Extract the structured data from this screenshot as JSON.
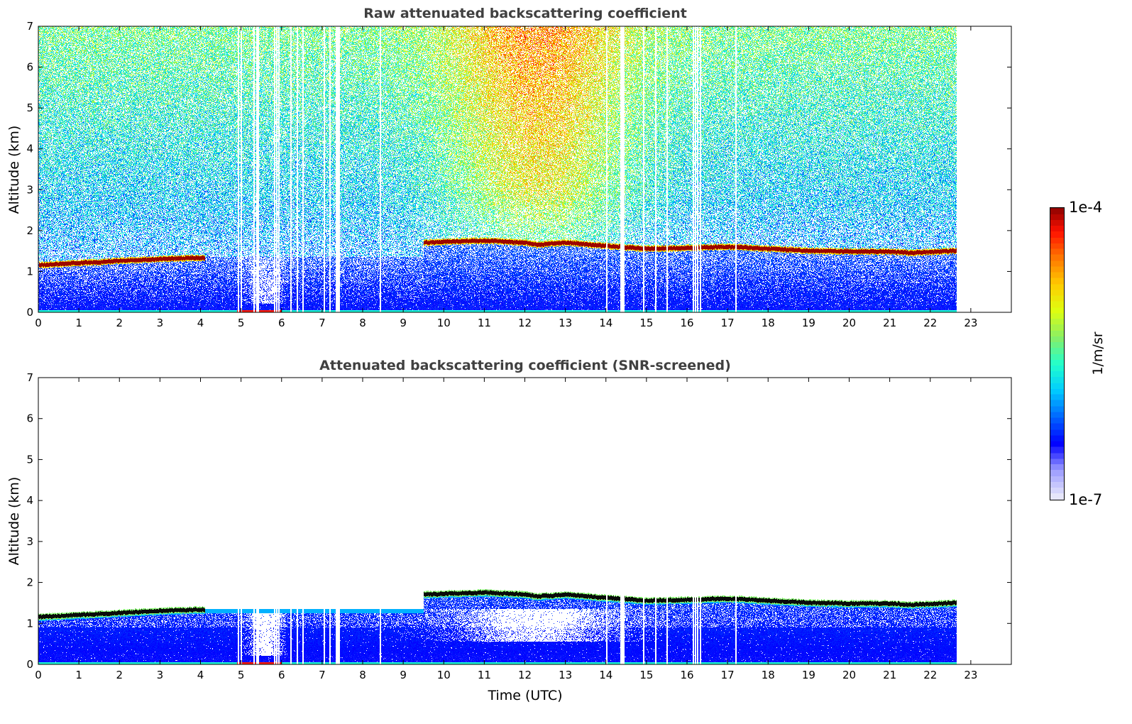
{
  "chart_data": [
    {
      "type": "heatmap",
      "title": "Raw attenuated backscattering coefficient",
      "xlabel": "",
      "ylabel": "Altitude (km)",
      "xlim": [
        0,
        24
      ],
      "ylim": [
        0,
        7
      ],
      "xticks": [
        "0",
        "1",
        "2",
        "3",
        "4",
        "5",
        "6",
        "7",
        "8",
        "9",
        "10",
        "11",
        "12",
        "13",
        "14",
        "15",
        "16",
        "17",
        "18",
        "19",
        "20",
        "21",
        "22",
        "23"
      ],
      "yticks": [
        "0",
        "1",
        "2",
        "3",
        "4",
        "5",
        "6",
        "7"
      ],
      "screened": false,
      "data_end_hour": 22.65,
      "cloud_layer_km": {
        "hours": [
          0,
          1,
          2,
          3,
          4,
          4.1,
          9.5,
          10,
          11,
          12,
          12.3,
          13,
          14,
          15,
          16,
          17,
          18,
          19,
          20,
          21,
          21.5,
          22,
          22.65
        ],
        "altitude": [
          1.15,
          1.2,
          1.25,
          1.3,
          1.33,
          1.33,
          1.7,
          1.72,
          1.75,
          1.7,
          1.65,
          1.7,
          1.62,
          1.55,
          1.57,
          1.6,
          1.55,
          1.5,
          1.48,
          1.48,
          1.45,
          1.47,
          1.5
        ]
      },
      "cloud_gap_hours": [
        4.1,
        9.5
      ],
      "missing_profiles_hours": [
        4.92,
        5.0,
        5.32,
        5.38,
        5.42,
        5.82,
        5.88,
        5.93,
        6.22,
        6.38,
        6.52,
        7.05,
        7.18,
        7.34,
        7.38,
        7.42,
        8.43,
        14.02,
        14.36,
        14.4,
        14.44,
        14.92,
        15.22,
        15.5,
        16.15,
        16.2,
        16.26,
        16.32,
        17.2
      ]
    },
    {
      "type": "heatmap",
      "title": "Attenuated backscattering coefficient (SNR-screened)",
      "xlabel": "Time (UTC)",
      "ylabel": "Altitude (km)",
      "xlim": [
        0,
        24
      ],
      "ylim": [
        0,
        7
      ],
      "xticks": [
        "0",
        "1",
        "2",
        "3",
        "4",
        "5",
        "6",
        "7",
        "8",
        "9",
        "10",
        "11",
        "12",
        "13",
        "14",
        "15",
        "16",
        "17",
        "18",
        "19",
        "20",
        "21",
        "22",
        "23"
      ],
      "yticks": [
        "0",
        "1",
        "2",
        "3",
        "4",
        "5",
        "6",
        "7"
      ],
      "screened": true
    }
  ],
  "colorbar": {
    "label": "1/m/sr",
    "max_label": "1e-4",
    "min_label": "1e-7",
    "range": [
      1e-07,
      0.0001
    ],
    "scale": "log",
    "stops": [
      "#e6e6fa",
      "#9a9aff",
      "#0000ff",
      "#0066ff",
      "#00ccff",
      "#22ffcc",
      "#88ee66",
      "#ddff11",
      "#ffcc00",
      "#ff7700",
      "#ff1100",
      "#800000"
    ]
  }
}
